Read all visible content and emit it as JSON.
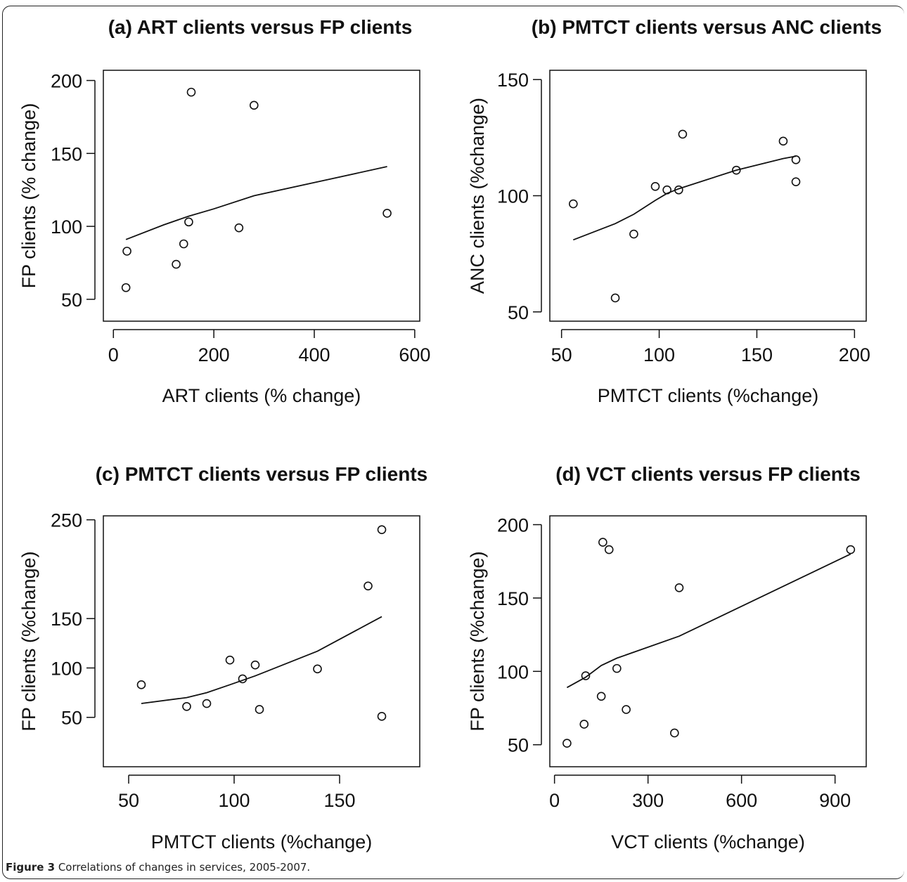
{
  "caption": {
    "label": "Figure 3",
    "text": "Correlations of changes in services, 2005-2007",
    "period": "."
  },
  "chart_data": [
    {
      "type": "scatter",
      "title": "(a) ART clients versus FP clients",
      "xlabel": "ART clients (% change)",
      "ylabel": "FP clients (% change)",
      "xlim": [
        -20,
        610
      ],
      "ylim": [
        35,
        207
      ],
      "xticks": [
        0,
        200,
        400,
        600
      ],
      "yticks": [
        50,
        100,
        150,
        200
      ],
      "points": [
        [
          25,
          58
        ],
        [
          27,
          83
        ],
        [
          125,
          74
        ],
        [
          140,
          88
        ],
        [
          150,
          103
        ],
        [
          155,
          192
        ],
        [
          250,
          99
        ],
        [
          280,
          183
        ],
        [
          545,
          109
        ]
      ],
      "trend": [
        [
          25,
          91
        ],
        [
          100,
          101
        ],
        [
          150,
          107
        ],
        [
          200,
          112
        ],
        [
          280,
          121
        ],
        [
          400,
          130
        ],
        [
          545,
          141
        ]
      ]
    },
    {
      "type": "scatter",
      "title": "(b) PMTCT clients versus ANC clients",
      "xlabel": "PMTCT clients (%change)",
      "ylabel": "ANC clients (%change)",
      "xlim": [
        44,
        206
      ],
      "ylim": [
        46,
        154
      ],
      "xticks": [
        50,
        100,
        150,
        200
      ],
      "yticks": [
        50,
        100,
        150
      ],
      "points": [
        [
          56,
          96.5
        ],
        [
          77.5,
          56
        ],
        [
          87,
          83.5
        ],
        [
          98,
          104
        ],
        [
          104,
          102.5
        ],
        [
          110,
          102.5
        ],
        [
          112,
          126.5
        ],
        [
          139.5,
          111
        ],
        [
          163.5,
          123.5
        ],
        [
          170,
          115.5
        ],
        [
          170,
          106
        ]
      ],
      "trend": [
        [
          56,
          81
        ],
        [
          77.5,
          88
        ],
        [
          87,
          92
        ],
        [
          98,
          98
        ],
        [
          104,
          101
        ],
        [
          110,
          103
        ],
        [
          139.5,
          111
        ],
        [
          163.5,
          116
        ],
        [
          170,
          117
        ]
      ]
    },
    {
      "type": "scatter",
      "title": "(c) PMTCT clients versus FP clients",
      "xlabel": "PMTCT clients (%change)",
      "ylabel": "FP clients (%change)",
      "xlim": [
        38,
        188
      ],
      "ylim": [
        0,
        254
      ],
      "xticks": [
        50,
        100,
        150
      ],
      "yticks": [
        50,
        100,
        150,
        250
      ],
      "points": [
        [
          56,
          83
        ],
        [
          77.5,
          61
        ],
        [
          87,
          64
        ],
        [
          98,
          108
        ],
        [
          104,
          89
        ],
        [
          110,
          103
        ],
        [
          112,
          58
        ],
        [
          139.5,
          99
        ],
        [
          163.5,
          183
        ],
        [
          170,
          240
        ],
        [
          170,
          51
        ]
      ],
      "trend": [
        [
          56,
          64
        ],
        [
          77.5,
          70
        ],
        [
          87,
          75
        ],
        [
          98,
          83
        ],
        [
          110,
          92
        ],
        [
          139.5,
          117
        ],
        [
          170,
          152
        ]
      ]
    },
    {
      "type": "scatter",
      "title": "(d) VCT clients versus FP clients",
      "xlabel": "VCT clients (%change)",
      "ylabel": "FP clients (%change)",
      "xlim": [
        -15,
        1000
      ],
      "ylim": [
        35,
        206
      ],
      "xticks": [
        0,
        300,
        600,
        900
      ],
      "yticks": [
        50,
        100,
        150,
        200
      ],
      "points": [
        [
          40,
          51
        ],
        [
          95,
          64
        ],
        [
          100,
          97
        ],
        [
          150,
          83
        ],
        [
          155,
          188
        ],
        [
          175,
          183
        ],
        [
          200,
          102
        ],
        [
          230,
          74
        ],
        [
          385,
          58
        ],
        [
          400,
          157
        ],
        [
          950,
          183
        ]
      ],
      "trend": [
        [
          40,
          89
        ],
        [
          100,
          96
        ],
        [
          150,
          104
        ],
        [
          200,
          109
        ],
        [
          400,
          124
        ],
        [
          950,
          180
        ]
      ]
    }
  ]
}
